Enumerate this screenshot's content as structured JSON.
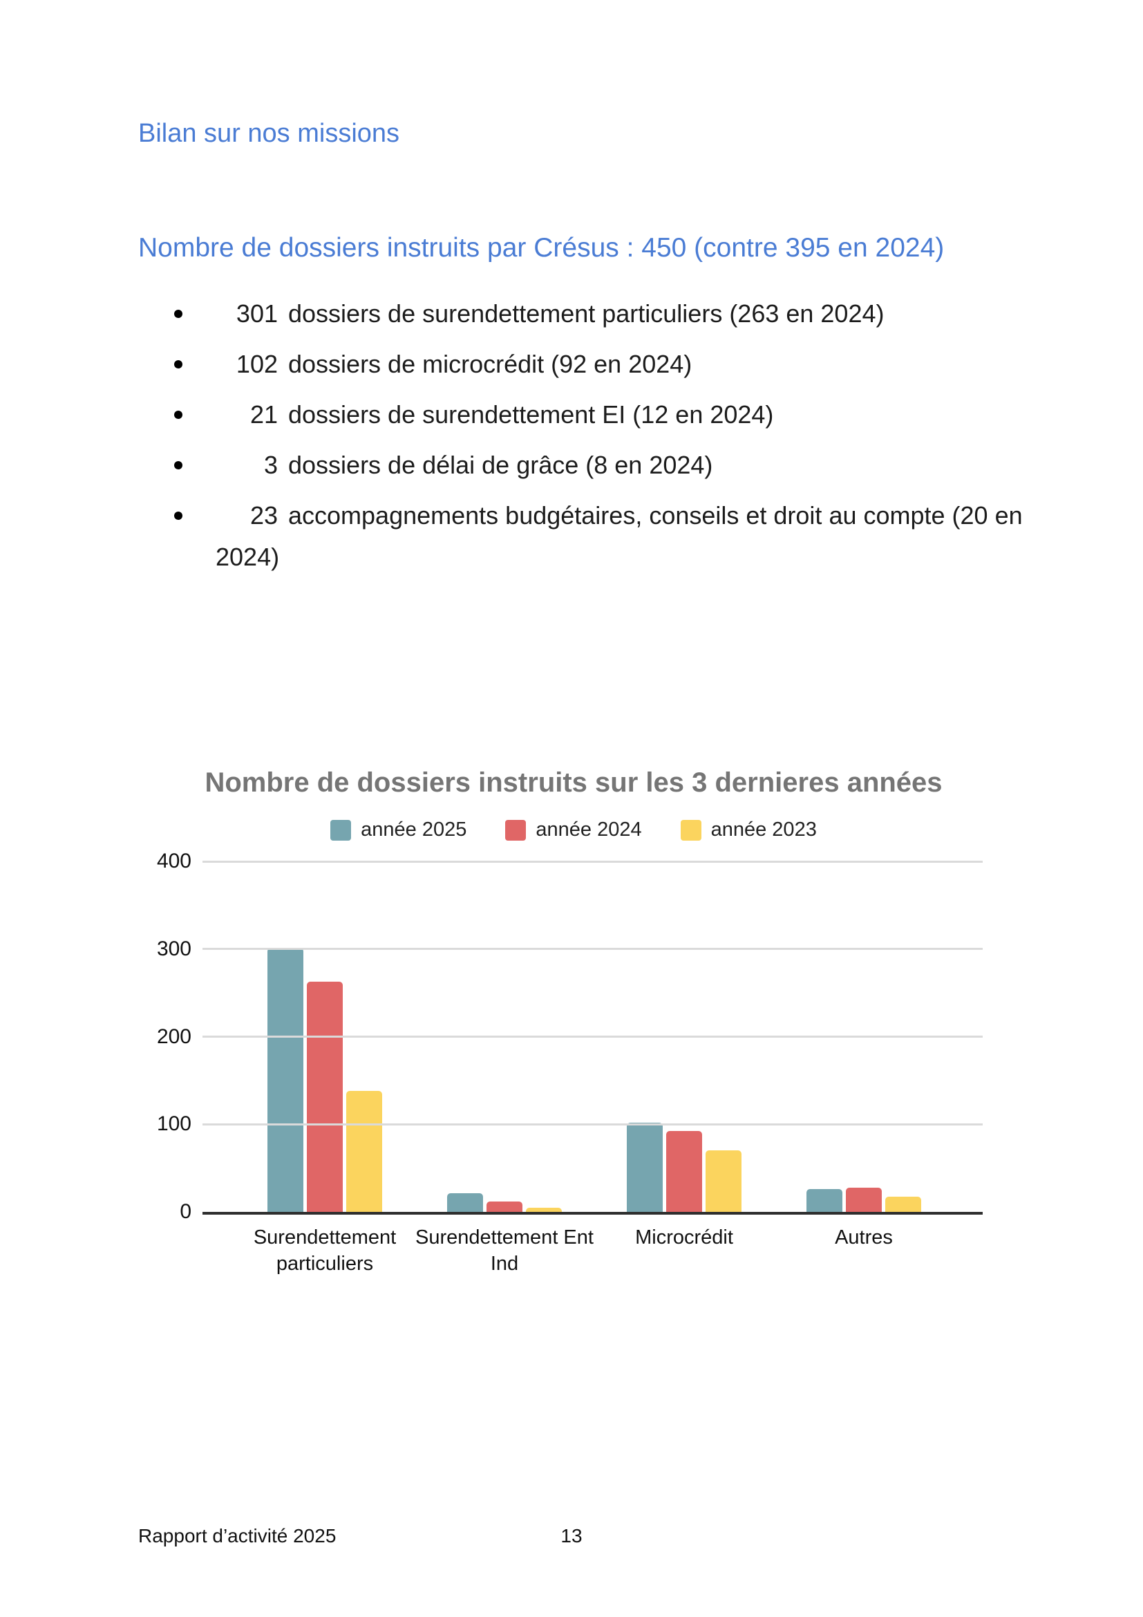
{
  "page": {
    "heading": "Bilan sur nos missions",
    "subheading": "Nombre de dossiers instruits par Crésus : 450 (contre 395 en 2024)",
    "bullets": [
      {
        "num": "301",
        "text": "dossiers de surendettement particuliers (263 en 2024)"
      },
      {
        "num": "102",
        "text": "dossiers de microcrédit (92 en 2024)"
      },
      {
        "num": "21",
        "text": "dossiers de surendettement EI (12 en 2024)"
      },
      {
        "num": "3",
        "text": "dossiers de délai de grâce (8 en 2024)"
      },
      {
        "num": "23",
        "text": "accompagnements budgétaires, conseils et droit au compte (20 en 2024)"
      }
    ],
    "footer": {
      "left": "Rapport d’activité 2025",
      "page_number": "13"
    }
  },
  "colors": {
    "heading_blue": "#4A7CD4",
    "chart_title_gray": "#757575",
    "gridline": "#DADADA",
    "axis": "#2e2e2e"
  },
  "chart_data": {
    "type": "bar",
    "title": "Nombre de dossiers instruits sur les 3 dernieres années",
    "categories": [
      "Surendettement particuliers",
      "Surendettement Ent Ind",
      "Microcrédit",
      "Autres"
    ],
    "category_label_lines": [
      [
        "Surendettement",
        "particuliers"
      ],
      [
        "Surendettement Ent",
        "Ind"
      ],
      [
        "Microcrédit"
      ],
      [
        "Autres"
      ]
    ],
    "series": [
      {
        "name": "année 2025",
        "color": "#76A5AF",
        "values": [
          301,
          21,
          102,
          26
        ]
      },
      {
        "name": "année 2024",
        "color": "#E06666",
        "values": [
          263,
          12,
          92,
          28
        ]
      },
      {
        "name": "année 2023",
        "color": "#FBD45E",
        "values": [
          138,
          5,
          70,
          17
        ]
      }
    ],
    "xlabel": "",
    "ylabel": "",
    "ylim": [
      0,
      400
    ],
    "yticks": [
      0,
      100,
      200,
      300,
      400
    ],
    "grid": true,
    "legend_position": "top"
  }
}
